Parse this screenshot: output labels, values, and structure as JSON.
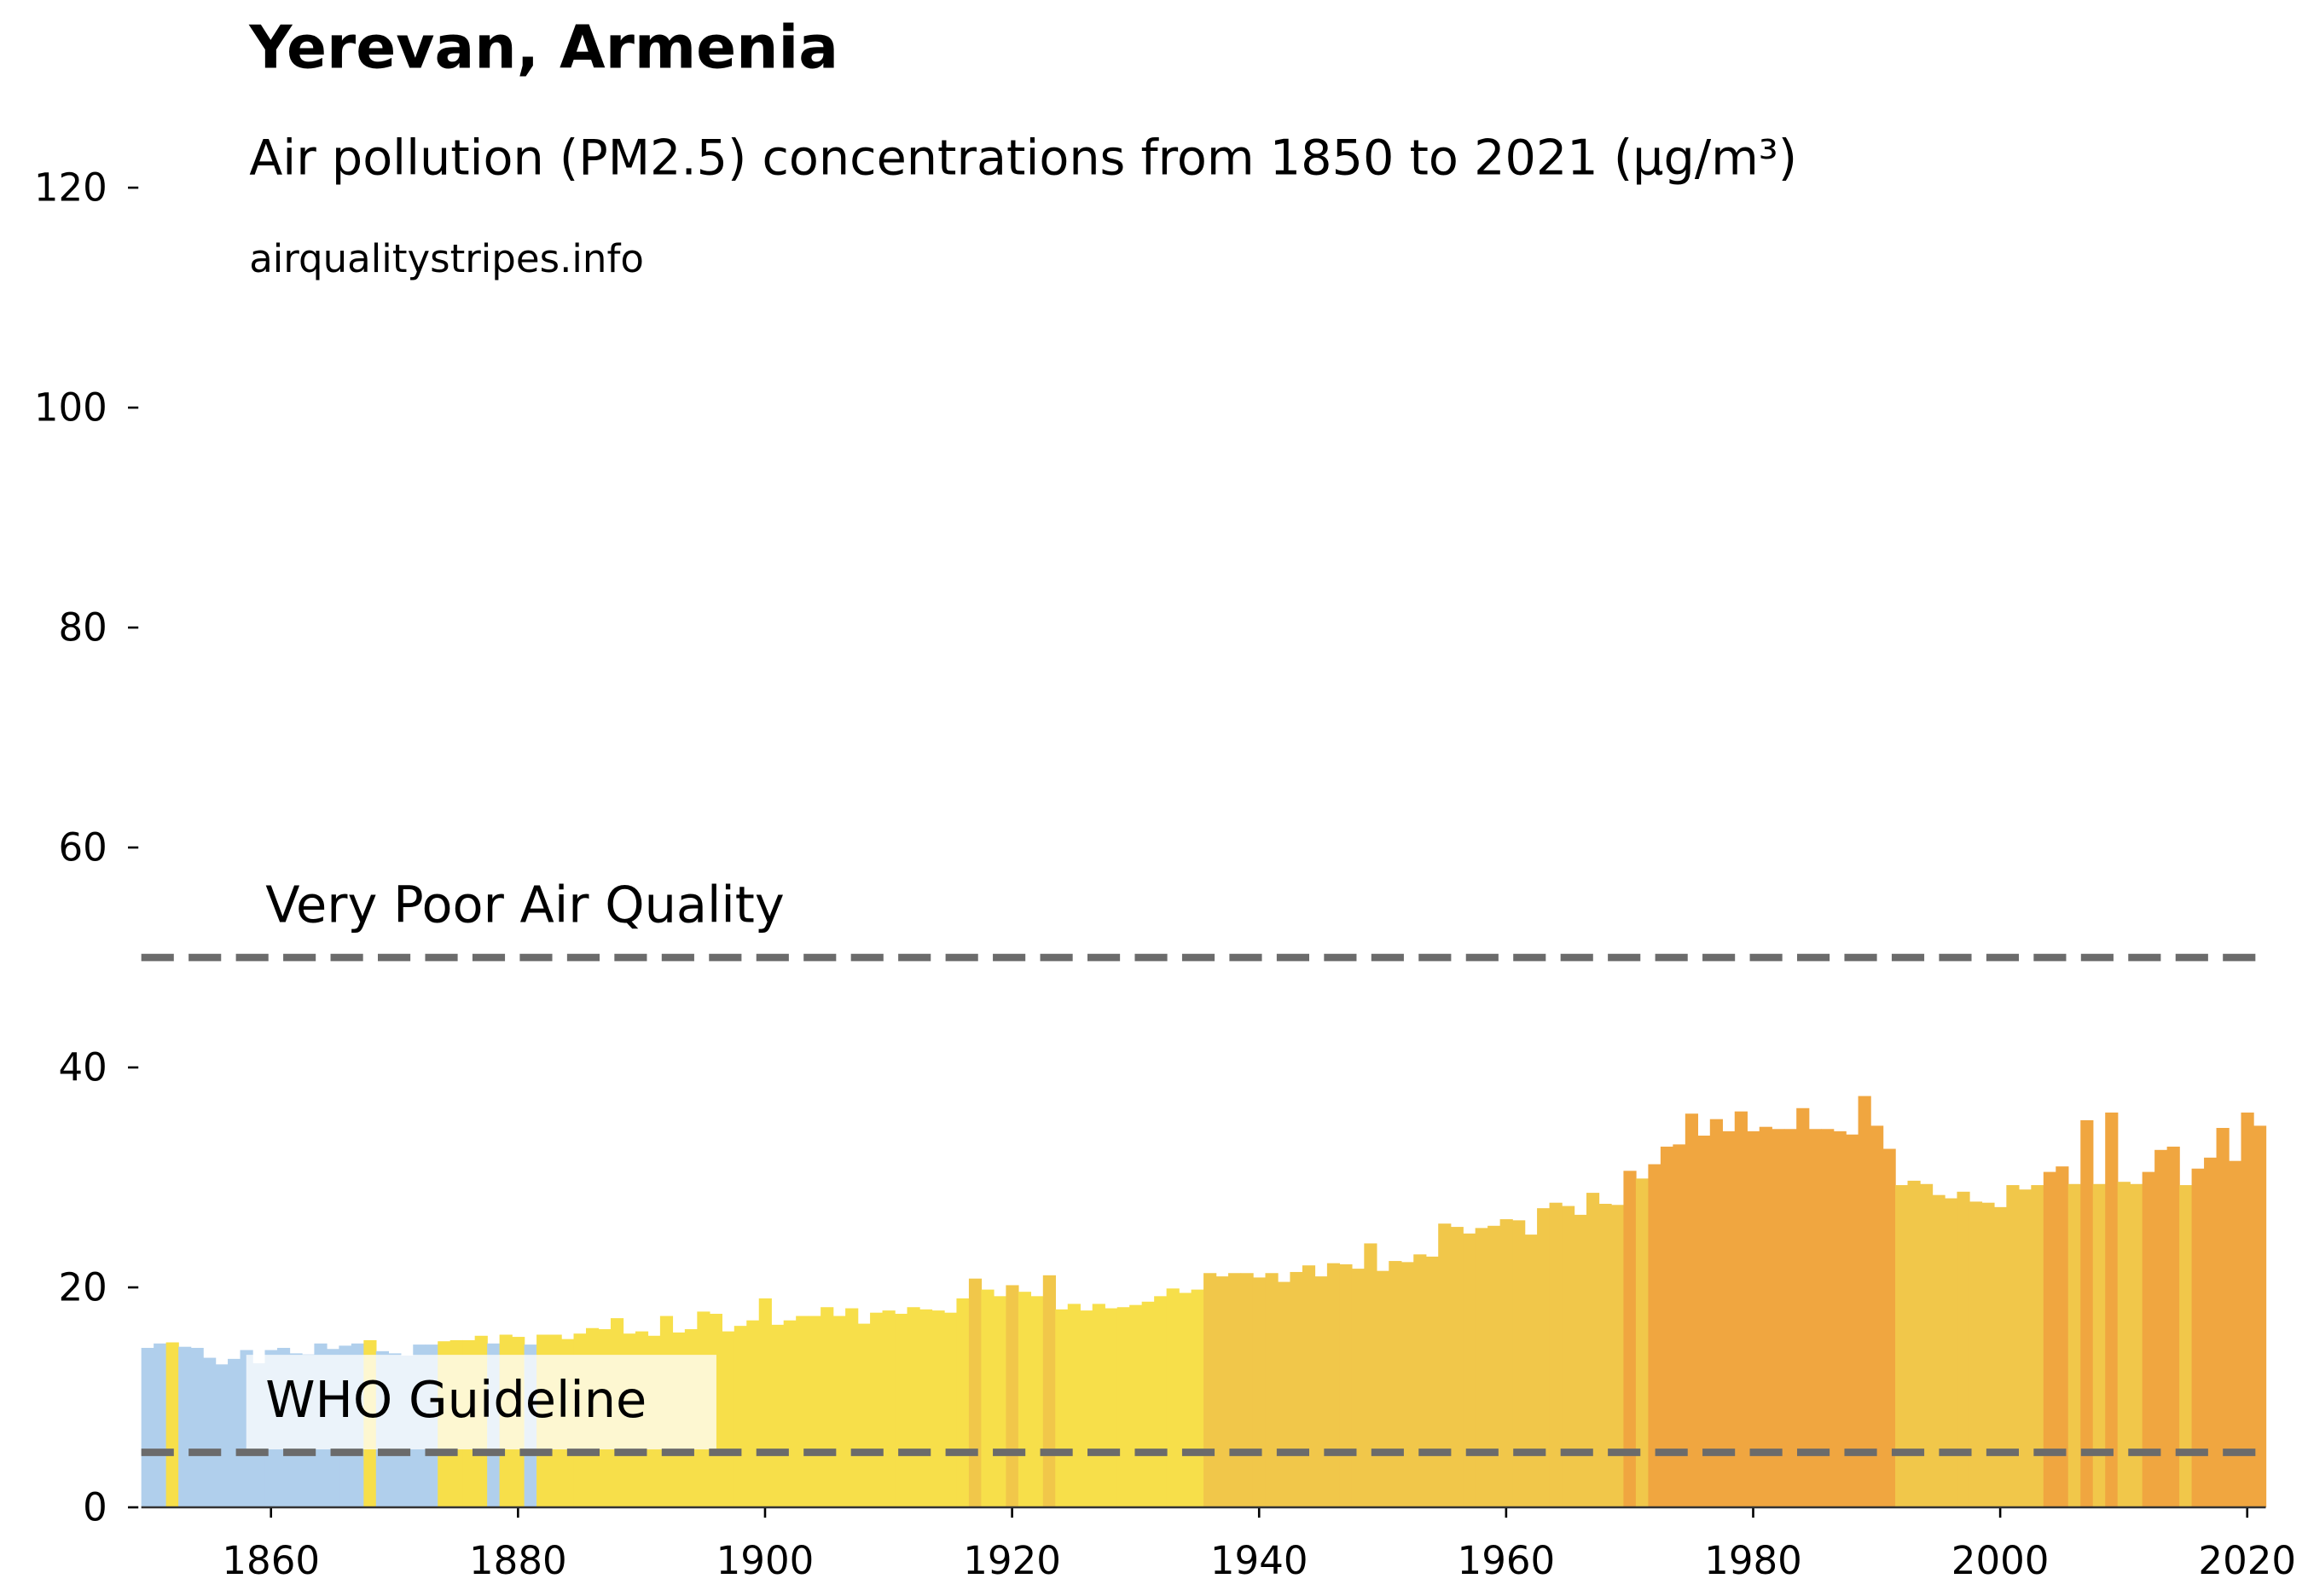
{
  "chart_data": {
    "type": "bar",
    "title": "Yerevan, Armenia",
    "subtitle": "Air pollution (PM2.5) concentrations from 1850 to 2021 (µg/m³)",
    "source": "airqualitystripes.info",
    "x": [
      1850,
      1851,
      1852,
      1853,
      1854,
      1855,
      1856,
      1857,
      1858,
      1859,
      1860,
      1861,
      1862,
      1863,
      1864,
      1865,
      1866,
      1867,
      1868,
      1869,
      1870,
      1871,
      1872,
      1873,
      1874,
      1875,
      1876,
      1877,
      1878,
      1879,
      1880,
      1881,
      1882,
      1883,
      1884,
      1885,
      1886,
      1887,
      1888,
      1889,
      1890,
      1891,
      1892,
      1893,
      1894,
      1895,
      1896,
      1897,
      1898,
      1899,
      1900,
      1901,
      1902,
      1903,
      1904,
      1905,
      1906,
      1907,
      1908,
      1909,
      1910,
      1911,
      1912,
      1913,
      1914,
      1915,
      1916,
      1917,
      1918,
      1919,
      1920,
      1921,
      1922,
      1923,
      1924,
      1925,
      1926,
      1927,
      1928,
      1929,
      1930,
      1931,
      1932,
      1933,
      1934,
      1935,
      1936,
      1937,
      1938,
      1939,
      1940,
      1941,
      1942,
      1943,
      1944,
      1945,
      1946,
      1947,
      1948,
      1949,
      1950,
      1951,
      1952,
      1953,
      1954,
      1955,
      1956,
      1957,
      1958,
      1959,
      1960,
      1961,
      1962,
      1963,
      1964,
      1965,
      1966,
      1967,
      1968,
      1969,
      1970,
      1971,
      1972,
      1973,
      1974,
      1975,
      1976,
      1977,
      1978,
      1979,
      1980,
      1981,
      1982,
      1983,
      1984,
      1985,
      1986,
      1987,
      1988,
      1989,
      1990,
      1991,
      1992,
      1993,
      1994,
      1995,
      1996,
      1997,
      1998,
      1999,
      2000,
      2001,
      2002,
      2003,
      2004,
      2005,
      2006,
      2007,
      2008,
      2009,
      2010,
      2011,
      2012,
      2013,
      2014,
      2015,
      2016,
      2017,
      2018,
      2019,
      2020,
      2021
    ],
    "values": [
      14.5,
      14.9,
      15.0,
      14.6,
      14.5,
      13.6,
      13.0,
      13.5,
      14.3,
      13.1,
      14.3,
      14.5,
      14.0,
      13.9,
      14.9,
      14.4,
      14.7,
      14.9,
      15.2,
      14.2,
      14.0,
      13.8,
      14.8,
      14.8,
      15.1,
      15.2,
      15.2,
      15.6,
      14.9,
      15.7,
      15.5,
      14.8,
      15.7,
      15.7,
      15.3,
      15.8,
      16.3,
      16.2,
      17.2,
      15.8,
      16.0,
      15.6,
      17.4,
      15.9,
      16.2,
      17.8,
      17.6,
      16.0,
      16.5,
      17.0,
      19.0,
      16.6,
      17.0,
      17.4,
      17.4,
      18.2,
      17.4,
      18.1,
      16.7,
      17.7,
      17.9,
      17.6,
      18.2,
      18.0,
      17.9,
      17.7,
      19.0,
      20.8,
      19.8,
      19.2,
      20.2,
      19.6,
      19.2,
      21.1,
      18.0,
      18.5,
      17.9,
      18.5,
      18.1,
      18.2,
      18.4,
      18.7,
      19.2,
      19.9,
      19.5,
      19.8,
      21.3,
      21.0,
      21.3,
      21.3,
      20.9,
      21.3,
      20.5,
      21.4,
      22.0,
      21.0,
      22.2,
      22.1,
      21.7,
      24.0,
      21.5,
      22.4,
      22.3,
      23.0,
      22.8,
      25.8,
      25.5,
      24.9,
      25.4,
      25.6,
      26.2,
      26.1,
      24.8,
      27.2,
      27.7,
      27.4,
      26.6,
      28.6,
      27.6,
      27.5,
      30.6,
      29.9,
      31.2,
      32.8,
      33.0,
      35.8,
      33.8,
      35.3,
      34.2,
      36.0,
      34.2,
      34.6,
      34.4,
      34.4,
      36.3,
      34.4,
      34.4,
      34.2,
      33.9,
      37.4,
      34.7,
      32.6,
      29.3,
      29.7,
      29.4,
      28.4,
      28.1,
      28.7,
      27.8,
      27.7,
      27.3,
      29.3,
      28.9,
      29.3,
      30.5,
      31.0,
      29.4,
      35.2,
      29.4,
      35.9,
      29.6,
      29.4,
      30.5,
      32.5,
      32.8,
      29.3,
      30.8,
      31.8,
      34.5,
      31.5,
      35.9,
      34.7
    ],
    "colors": [
      "#b0cfec",
      "#b0cfec",
      "#f7df4a",
      "#b0cfec",
      "#b0cfec",
      "#b0cfec",
      "#b0cfec",
      "#b0cfec",
      "#b0cfec",
      "#b0cfec",
      "#b0cfec",
      "#b0cfec",
      "#b0cfec",
      "#b0cfec",
      "#b0cfec",
      "#b0cfec",
      "#b0cfec",
      "#b0cfec",
      "#f7df4a",
      "#b0cfec",
      "#b0cfec",
      "#b0cfec",
      "#b0cfec",
      "#b0cfec",
      "#f7df4a",
      "#f7df4a",
      "#f7df4a",
      "#f7df4a",
      "#b0cfec",
      "#f7df4a",
      "#f7df4a",
      "#b0cfec",
      "#f7df4a",
      "#f7df4a",
      "#f7df4a",
      "#f7df4a",
      "#f7df4a",
      "#f7df4a",
      "#f7df4a",
      "#f7df4a",
      "#f7df4a",
      "#f7df4a",
      "#f7df4a",
      "#f7df4a",
      "#f7df4a",
      "#f7df4a",
      "#f7df4a",
      "#f7df4a",
      "#f7df4a",
      "#f7df4a",
      "#f7df4a",
      "#f7df4a",
      "#f7df4a",
      "#f7df4a",
      "#f7df4a",
      "#f7df4a",
      "#f7df4a",
      "#f7df4a",
      "#f7df4a",
      "#f7df4a",
      "#f7df4a",
      "#f7df4a",
      "#f7df4a",
      "#f7df4a",
      "#f7df4a",
      "#f7df4a",
      "#f7df4a",
      "#f1c74a",
      "#f7df4a",
      "#f7df4a",
      "#f1c74a",
      "#f7df4a",
      "#f7df4a",
      "#f1c74a",
      "#f7df4a",
      "#f7df4a",
      "#f7df4a",
      "#f7df4a",
      "#f7df4a",
      "#f7df4a",
      "#f7df4a",
      "#f7df4a",
      "#f7df4a",
      "#f7df4a",
      "#f7df4a",
      "#f7df4a",
      "#f1c74a",
      "#f1c74a",
      "#f1c74a",
      "#f1c74a",
      "#f1c74a",
      "#f1c74a",
      "#f1c74a",
      "#f1c74a",
      "#f1c74a",
      "#f1c74a",
      "#f1c74a",
      "#f1c74a",
      "#f1c74a",
      "#f1c74a",
      "#f1c74a",
      "#f1c74a",
      "#f1c74a",
      "#f1c74a",
      "#f1c74a",
      "#f1c74a",
      "#f1c74a",
      "#f1c74a",
      "#f1c74a",
      "#f1c74a",
      "#f1c74a",
      "#f1c74a",
      "#f1c74a",
      "#f1c74a",
      "#f1c74a",
      "#f1c74a",
      "#f1c74a",
      "#f1c74a",
      "#f1c74a",
      "#f1c74a",
      "#f0a640",
      "#f1c74a",
      "#f0a640",
      "#f0a640",
      "#f0a640",
      "#f0a640",
      "#f0a640",
      "#f0a640",
      "#f0a640",
      "#f0a640",
      "#f0a640",
      "#f0a640",
      "#f0a640",
      "#f0a640",
      "#f0a640",
      "#f0a640",
      "#f0a640",
      "#f0a640",
      "#f0a640",
      "#f0a640",
      "#f0a640",
      "#f0a640",
      "#f1c74a",
      "#f1c74a",
      "#f1c74a",
      "#f1c74a",
      "#f1c74a",
      "#f1c74a",
      "#f1c74a",
      "#f1c74a",
      "#f1c74a",
      "#f1c74a",
      "#f1c74a",
      "#f1c74a",
      "#f0a640",
      "#f0a640",
      "#f1c74a",
      "#f0a640",
      "#f1c74a",
      "#f0a640",
      "#f1c74a",
      "#f1c74a",
      "#f0a640",
      "#f0a640",
      "#f0a640",
      "#f1c74a",
      "#f0a640",
      "#f0a640",
      "#f0a640",
      "#f0a640",
      "#f0a640",
      "#f0a640"
    ],
    "xlim": [
      1849.5,
      2021.5
    ],
    "xticks": [
      1860,
      1880,
      1900,
      1920,
      1940,
      1960,
      1980,
      2000,
      2020
    ],
    "ylim": [
      0,
      125
    ],
    "yticks": [
      0,
      20,
      40,
      60,
      80,
      100,
      120
    ],
    "grid": false,
    "reference_lines": [
      {
        "value": 5,
        "label": "WHO Guideline",
        "color": "#6b6b6b"
      },
      {
        "value": 50,
        "label": "Very Poor Air Quality",
        "color": "#6b6b6b"
      }
    ]
  }
}
